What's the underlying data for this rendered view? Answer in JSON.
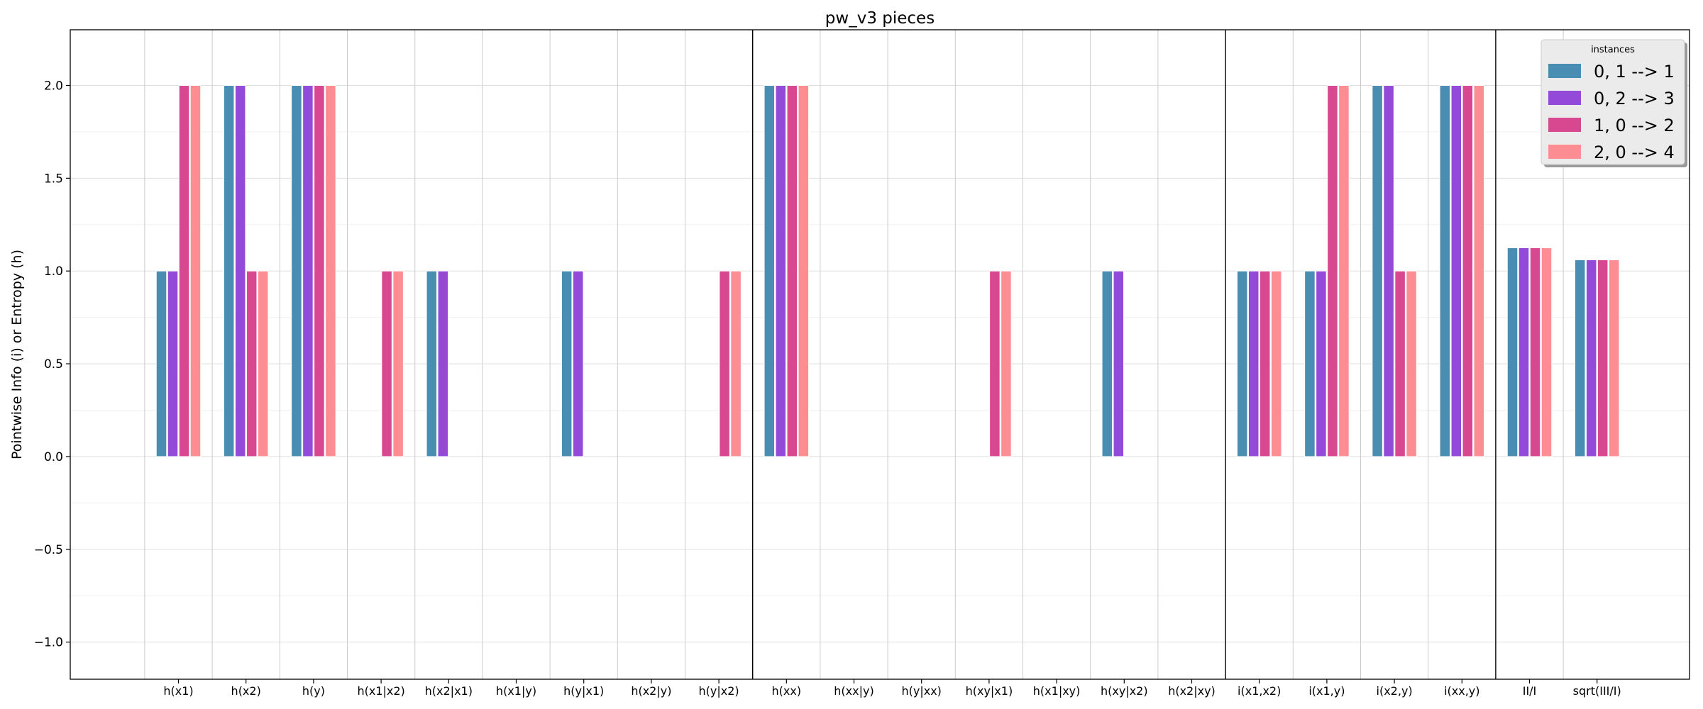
{
  "chart_data": {
    "type": "bar",
    "title": "pw_v3 pieces",
    "xlabel": "",
    "ylabel": "Pointwise Info (i) or Entropy (h)",
    "ylim": [
      -1.2,
      2.3
    ],
    "yticks": [
      -1.0,
      -0.5,
      0.0,
      0.5,
      1.0,
      1.5,
      2.0
    ],
    "ytick_labels": [
      "−1.0",
      "−0.5",
      "0.0",
      "0.5",
      "1.0",
      "1.5",
      "2.0"
    ],
    "grid": true,
    "legend": {
      "title": "instances",
      "position": "top-right"
    },
    "categories": [
      "h(x1)",
      "h(x2)",
      "h(y)",
      "h(x1|x2)",
      "h(x2|x1)",
      "h(x1|y)",
      "h(y|x1)",
      "h(x2|y)",
      "h(y|x2)",
      "h(xx)",
      "h(xx|y)",
      "h(y|xx)",
      "h(xy|x1)",
      "h(x1|xy)",
      "h(xy|x2)",
      "h(x2|xy)",
      "i(x1,x2)",
      "i(x1,y)",
      "i(x2,y)",
      "i(xx,y)",
      "II/I",
      "sqrt(III/I)"
    ],
    "group_separators_after": [
      "h(y|x2)",
      "h(x2|xy)",
      "i(xx,y)"
    ],
    "series": [
      {
        "name": "0, 1 --> 1",
        "color": "#4a8db3",
        "values": [
          1,
          2,
          2,
          0,
          1,
          0,
          1,
          0,
          0,
          2,
          0,
          0,
          0,
          0,
          1,
          0,
          1,
          1,
          2,
          2,
          1.125,
          1.06
        ]
      },
      {
        "name": "0, 2 --> 3",
        "color": "#934ad8",
        "values": [
          1,
          2,
          2,
          0,
          1,
          0,
          1,
          0,
          0,
          2,
          0,
          0,
          0,
          0,
          1,
          0,
          1,
          1,
          2,
          2,
          1.125,
          1.06
        ]
      },
      {
        "name": "1, 0 --> 2",
        "color": "#d84890",
        "values": [
          2,
          1,
          2,
          1,
          0,
          0,
          0,
          0,
          1,
          2,
          0,
          0,
          1,
          0,
          0,
          0,
          1,
          2,
          1,
          2,
          1.125,
          1.06
        ]
      },
      {
        "name": "2, 0 --> 4",
        "color": "#fc8d93",
        "values": [
          2,
          1,
          2,
          1,
          0,
          0,
          0,
          0,
          1,
          2,
          0,
          0,
          1,
          0,
          0,
          0,
          1,
          2,
          1,
          2,
          1.125,
          1.06
        ]
      }
    ]
  }
}
